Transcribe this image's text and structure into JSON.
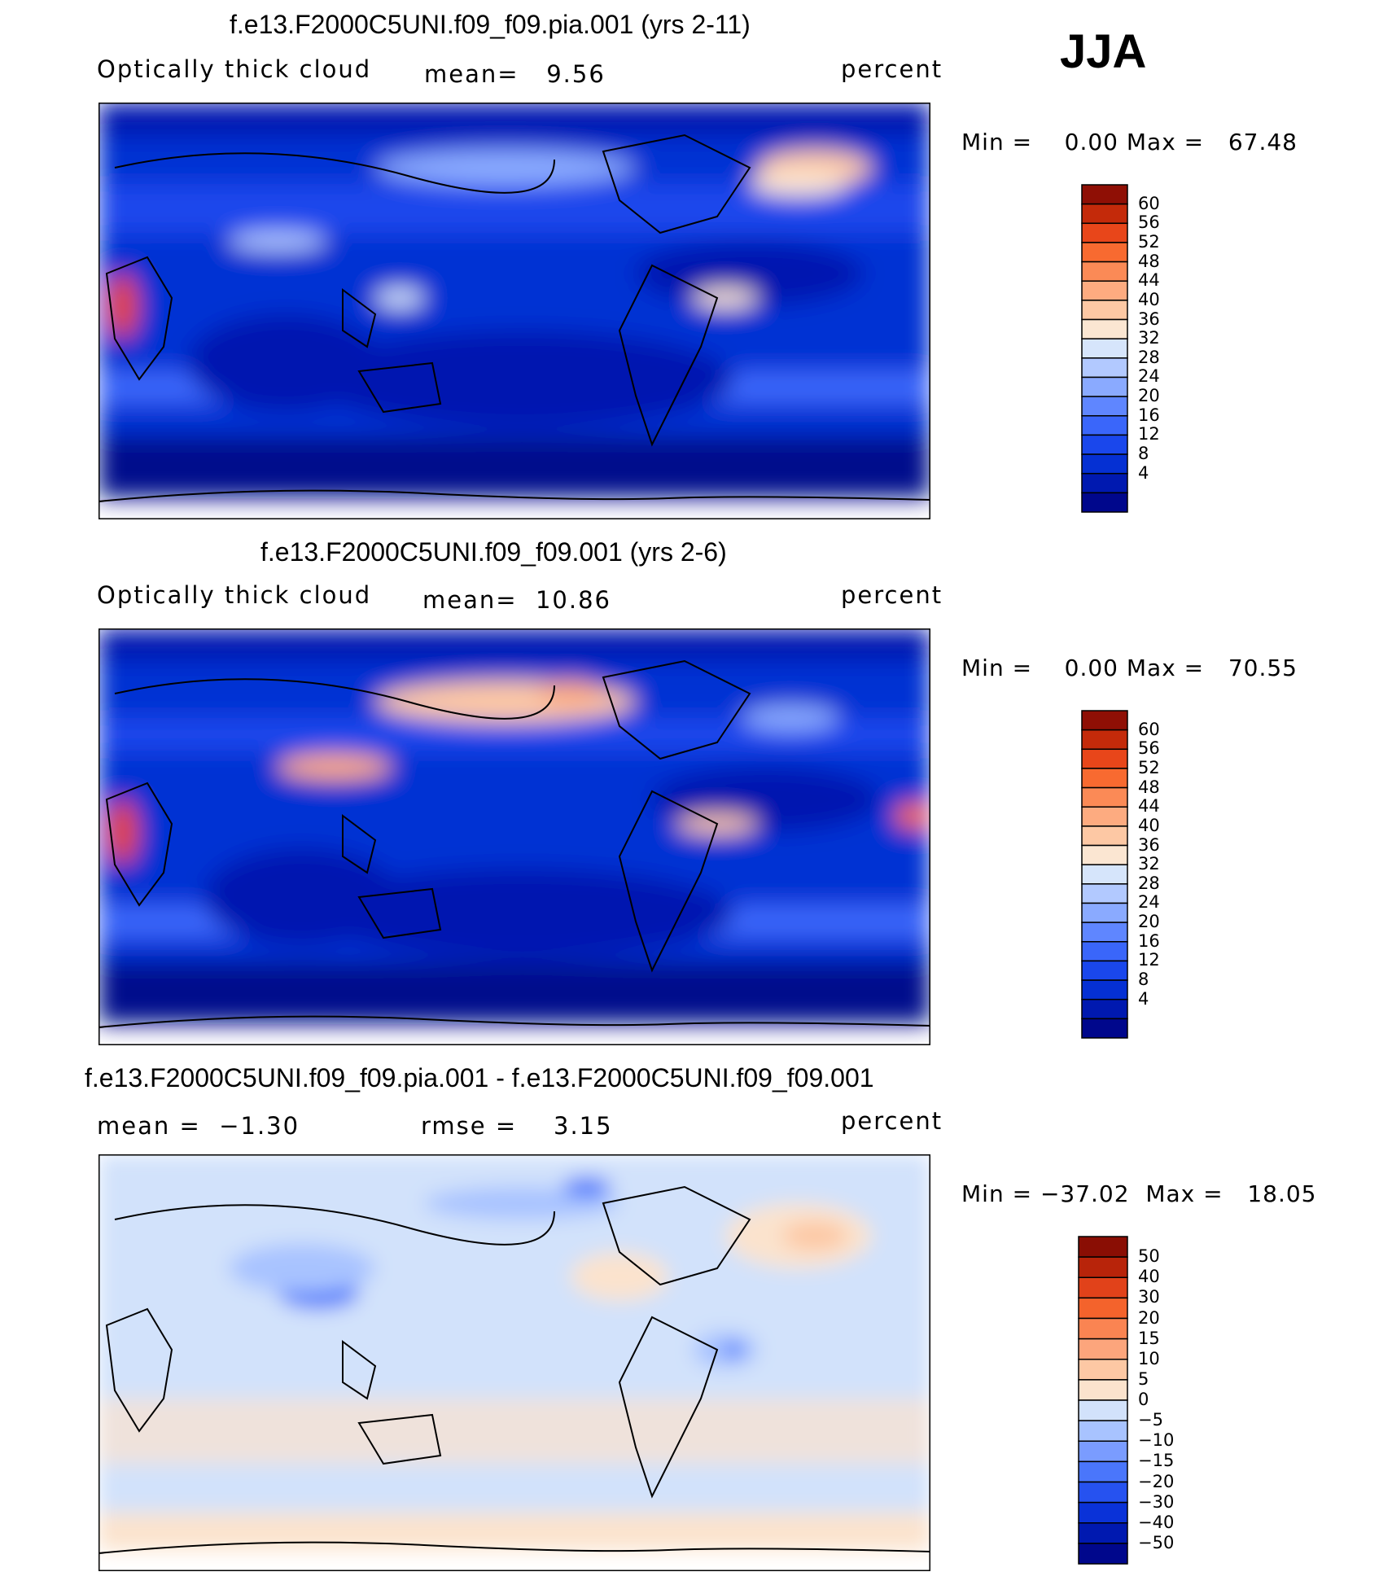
{
  "season_label": "JJA",
  "colors": {
    "abs_scale": [
      "#00078c",
      "#0019b0",
      "#0530d3",
      "#1a47ec",
      "#3a66fa",
      "#5f86ff",
      "#8aaaff",
      "#b2c9ff",
      "#d6e5fb",
      "#fbe6d2",
      "#fdc8a4",
      "#fdab80",
      "#fb8a56",
      "#f86a30",
      "#e8461a",
      "#c42a0a",
      "#8f0f05"
    ],
    "diff_scale": [
      "#00078c",
      "#0019b0",
      "#0a32d8",
      "#2652f0",
      "#4a76fb",
      "#7a9cff",
      "#a8c3ff",
      "#d2e2fb",
      "#fbe3cd",
      "#fdc8a4",
      "#fca57c",
      "#fa8452",
      "#f4632c",
      "#e1421a",
      "#b8240a",
      "#8a0e04"
    ]
  },
  "chart_data": [
    {
      "type": "heatmap",
      "title": "f.e13.F2000C5UNI.f09_f09.pia.001 (yrs 2-11)",
      "variable_label": "Optically thick cloud",
      "stat_text": "mean=   9.56",
      "units": "percent",
      "min_text": "Min =    0.00 Max =   67.48",
      "mean": 9.56,
      "min": 0.0,
      "max": 67.48,
      "colorbar_levels": [
        "60",
        "56",
        "52",
        "48",
        "44",
        "40",
        "36",
        "32",
        "28",
        "24",
        "20",
        "16",
        "12",
        "8",
        "4"
      ]
    },
    {
      "type": "heatmap",
      "title": "f.e13.F2000C5UNI.f09_f09.001 (yrs 2-6)",
      "variable_label": "Optically thick cloud",
      "stat_text": "mean=  10.86",
      "units": "percent",
      "min_text": "Min =    0.00 Max =   70.55",
      "mean": 10.86,
      "min": 0.0,
      "max": 70.55,
      "colorbar_levels": [
        "60",
        "56",
        "52",
        "48",
        "44",
        "40",
        "36",
        "32",
        "28",
        "24",
        "20",
        "16",
        "12",
        "8",
        "4"
      ]
    },
    {
      "type": "heatmap",
      "title": "f.e13.F2000C5UNI.f09_f09.pia.001 - f.e13.F2000C5UNI.f09_f09.001",
      "mean_text": "mean =  −1.30",
      "rmse_text": "rmse =    3.15",
      "units": "percent",
      "min_text": "Min = −37.02  Max =   18.05",
      "mean": -1.3,
      "rmse": 3.15,
      "min": -37.02,
      "max": 18.05,
      "colorbar_levels": [
        "50",
        "40",
        "30",
        "20",
        "15",
        "10",
        "5",
        "0",
        "−5",
        "−10",
        "−15",
        "−20",
        "−30",
        "−40",
        "−50"
      ]
    }
  ]
}
